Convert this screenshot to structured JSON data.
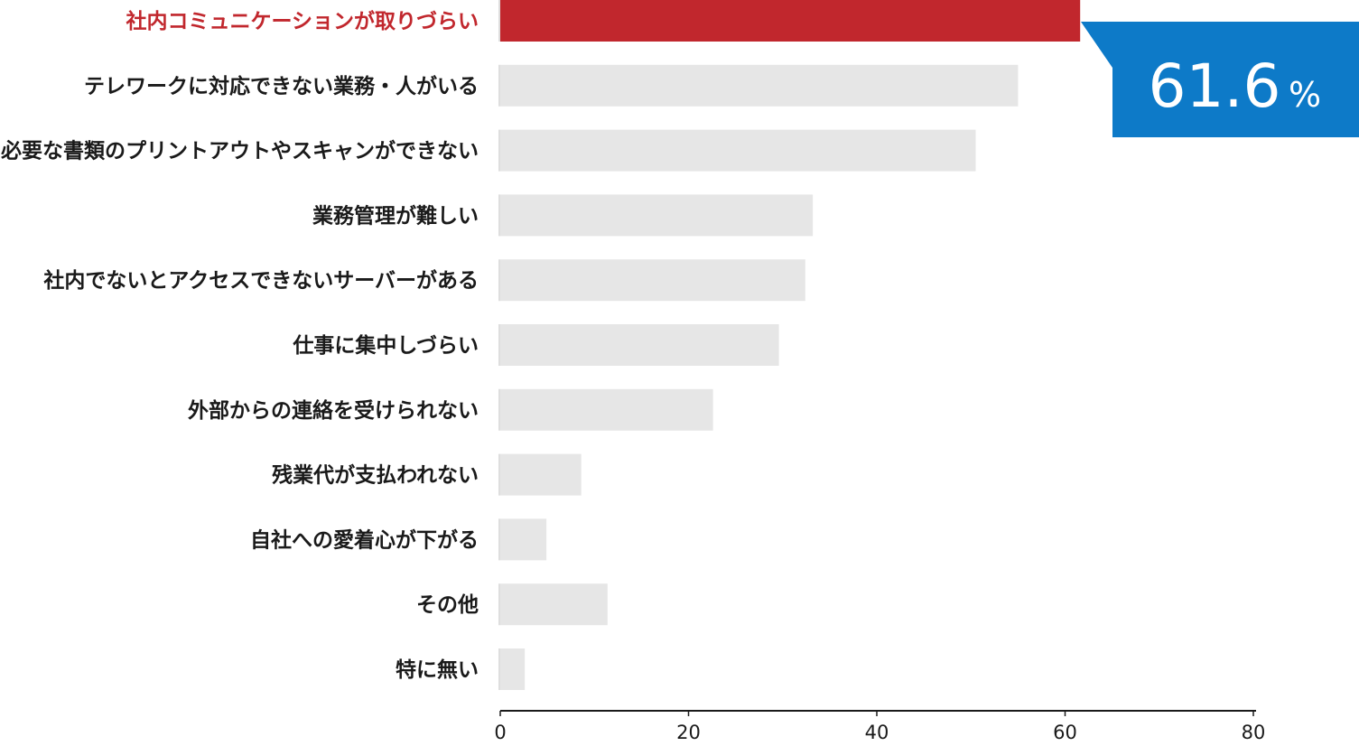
{
  "chart_data": {
    "type": "bar",
    "orientation": "horizontal",
    "categories": [
      "社内コミュニケーションが取りづらい",
      "テレワークに対応できない業務・人がいる",
      "必要な書類のプリントアウトやスキャンができない",
      "業務管理が難しい",
      "社内でないとアクセスできないサーバーがある",
      "仕事に集中しづらい",
      "外部からの連絡を受けられない",
      "残業代が支払われない",
      "自社への愛着心が下がる",
      "その他",
      "特に無い"
    ],
    "values": [
      61.6,
      55,
      50.5,
      33.2,
      32.4,
      29.6,
      22.6,
      8.6,
      4.9,
      11.4,
      2.6
    ],
    "highlight_index": 0,
    "xlim": [
      0,
      80
    ],
    "xticks": [
      0,
      20,
      40,
      60,
      80
    ],
    "xtick_labels": [
      "0",
      "20",
      "40",
      "60",
      "80"
    ],
    "grid": false,
    "colors": {
      "highlight_bar": "#c1272d",
      "bar": "#e6e6e6",
      "highlight_label": "#c1272d",
      "label": "#1a1a1a",
      "callout": "#0d7ac8"
    }
  },
  "callout": {
    "value": "61.6",
    "unit": "%"
  }
}
